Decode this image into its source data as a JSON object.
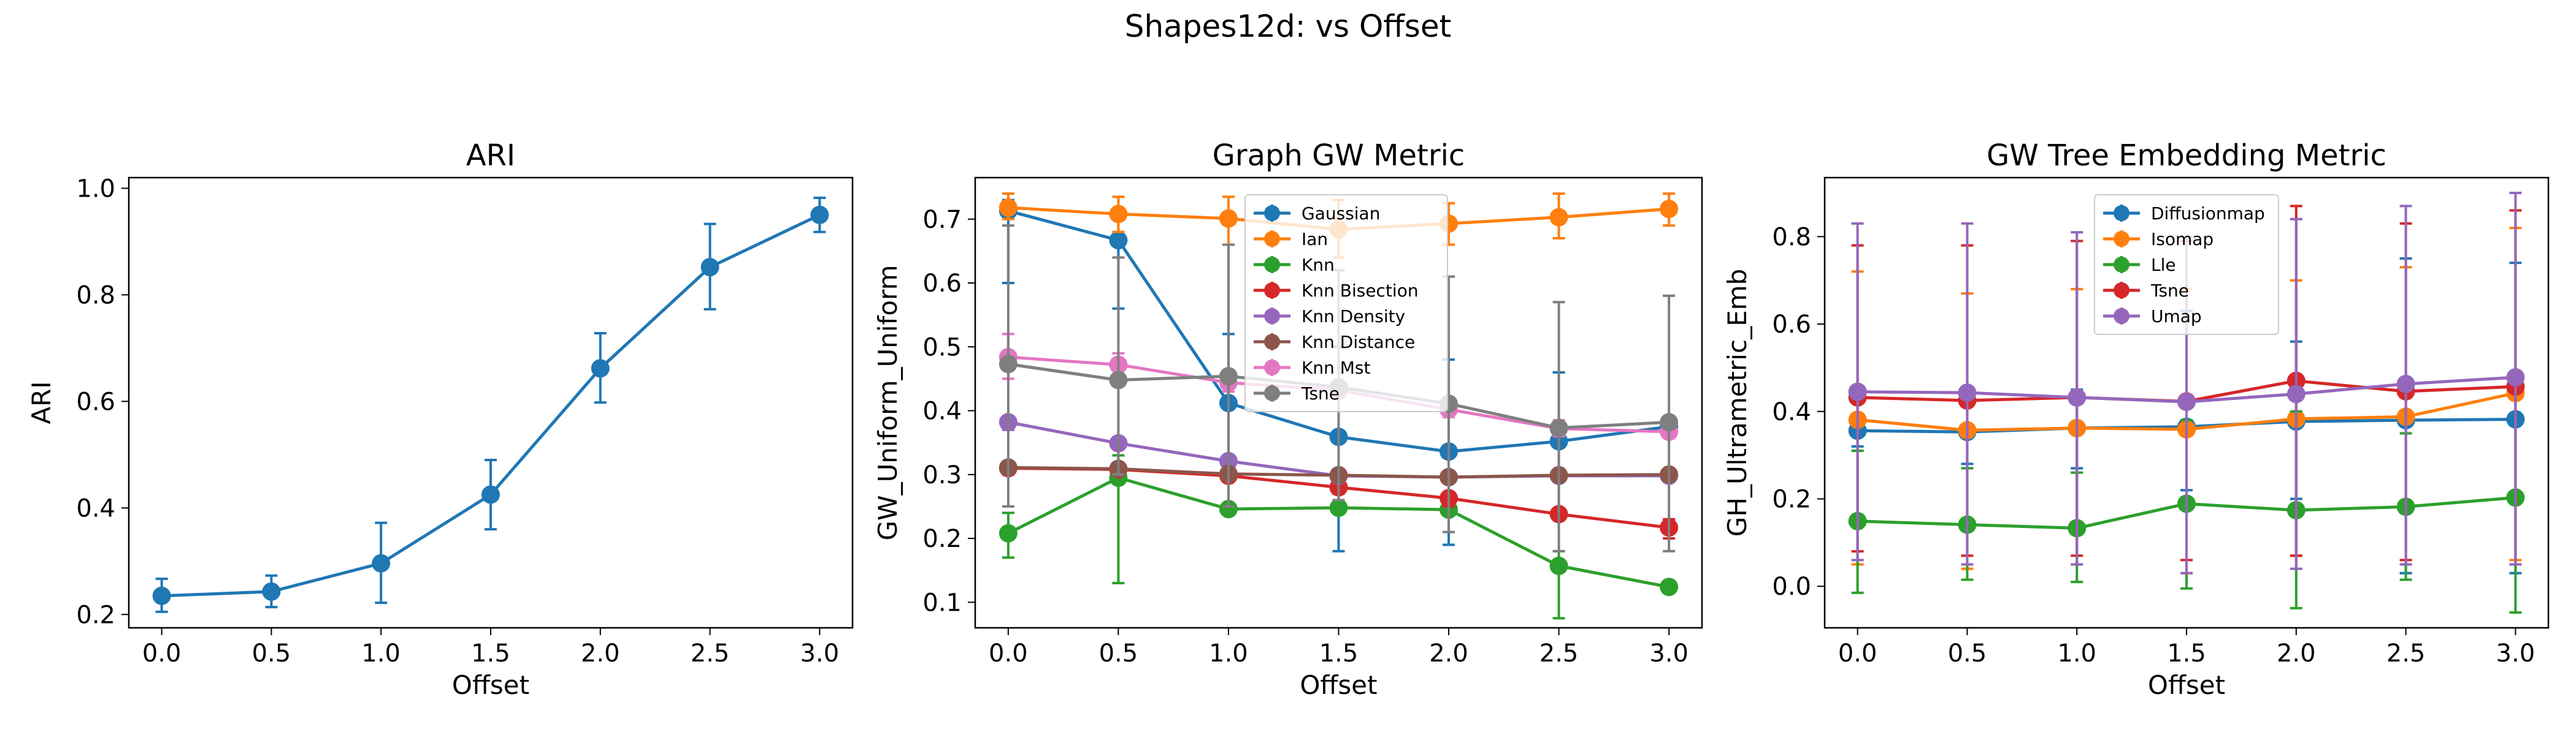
{
  "figure": {
    "title": "Shapes12d: vs Offset"
  },
  "chart_data": [
    {
      "type": "line",
      "title": "ARI",
      "xlabel": "Offset",
      "ylabel": "ARI",
      "xlim": [
        -0.15,
        3.15
      ],
      "ylim": [
        0.175,
        1.02
      ],
      "xticks": [
        0.0,
        0.5,
        1.0,
        1.5,
        2.0,
        2.5,
        3.0
      ],
      "xtick_labels": [
        "0.0",
        "0.5",
        "1.0",
        "1.5",
        "2.0",
        "2.5",
        "3.0"
      ],
      "yticks": [
        0.2,
        0.4,
        0.6,
        0.8,
        1.0
      ],
      "ytick_labels": [
        "0.2",
        "0.4",
        "0.6",
        "0.8",
        "1.0"
      ],
      "x": [
        0.0,
        0.5,
        1.0,
        1.5,
        2.0,
        2.5,
        3.0
      ],
      "legend": null,
      "series": [
        {
          "name": "",
          "color": "#1f77b4",
          "values": [
            0.235,
            0.243,
            0.296,
            0.425,
            0.662,
            0.852,
            0.95
          ],
          "err_low": [
            0.205,
            0.214,
            0.222,
            0.36,
            0.598,
            0.773,
            0.918
          ],
          "err_high": [
            0.267,
            0.273,
            0.372,
            0.49,
            0.728,
            0.933,
            0.982
          ]
        }
      ]
    },
    {
      "type": "line",
      "title": "Graph GW Metric",
      "xlabel": "Offset",
      "ylabel": "GW_Uniform_Uniform",
      "xlim": [
        -0.15,
        3.15
      ],
      "ylim": [
        0.06,
        0.765
      ],
      "xticks": [
        0.0,
        0.5,
        1.0,
        1.5,
        2.0,
        2.5,
        3.0
      ],
      "xtick_labels": [
        "0.0",
        "0.5",
        "1.0",
        "1.5",
        "2.0",
        "2.5",
        "3.0"
      ],
      "yticks": [
        0.1,
        0.2,
        0.3,
        0.4,
        0.5,
        0.6,
        0.7
      ],
      "ytick_labels": [
        "0.1",
        "0.2",
        "0.3",
        "0.4",
        "0.5",
        "0.6",
        "0.7"
      ],
      "x": [
        0.0,
        0.5,
        1.0,
        1.5,
        2.0,
        2.5,
        3.0
      ],
      "legend": "top-center",
      "series": [
        {
          "name": "Gaussian",
          "color": "#1f77b4",
          "values": [
            0.713,
            0.667,
            0.412,
            0.359,
            0.336,
            0.352,
            0.375
          ],
          "err_low": [
            0.6,
            0.56,
            0.3,
            0.18,
            0.19,
            0.24,
            0.36
          ],
          "err_high": [
            0.73,
            0.7,
            0.52,
            0.5,
            0.48,
            0.46,
            0.39
          ]
        },
        {
          "name": "Ian",
          "color": "#ff7f0e",
          "values": [
            0.718,
            0.708,
            0.701,
            0.684,
            0.693,
            0.703,
            0.716
          ],
          "err_low": [
            0.7,
            0.68,
            0.66,
            0.64,
            0.66,
            0.67,
            0.69
          ],
          "err_high": [
            0.74,
            0.735,
            0.735,
            0.73,
            0.725,
            0.74,
            0.74
          ]
        },
        {
          "name": "Knn",
          "color": "#2ca02c",
          "values": [
            0.208,
            0.295,
            0.246,
            0.248,
            0.245,
            0.157,
            0.124
          ],
          "err_low": [
            0.17,
            0.13,
            0.24,
            0.24,
            0.24,
            0.075,
            0.12
          ],
          "err_high": [
            0.24,
            0.33,
            0.25,
            0.26,
            0.25,
            0.18,
            0.13
          ]
        },
        {
          "name": "Knn Bisection",
          "color": "#d62728",
          "values": [
            0.31,
            0.308,
            0.298,
            0.28,
            0.263,
            0.238,
            0.217
          ],
          "err_low": [
            0.3,
            0.3,
            0.29,
            0.27,
            0.25,
            0.23,
            0.2
          ],
          "err_high": [
            0.32,
            0.315,
            0.305,
            0.29,
            0.27,
            0.245,
            0.23
          ]
        },
        {
          "name": "Knn Density",
          "color": "#9467bd",
          "values": [
            0.382,
            0.349,
            0.321,
            0.298,
            0.296,
            0.298,
            0.298
          ],
          "err_low": [
            0.37,
            0.34,
            0.31,
            0.29,
            0.29,
            0.29,
            0.29
          ],
          "err_high": [
            0.39,
            0.355,
            0.33,
            0.305,
            0.3,
            0.305,
            0.305
          ]
        },
        {
          "name": "Knn Distance",
          "color": "#8c564b",
          "values": [
            0.311,
            0.309,
            0.301,
            0.299,
            0.296,
            0.299,
            0.3
          ],
          "err_low": [
            0.305,
            0.3,
            0.295,
            0.293,
            0.29,
            0.293,
            0.295
          ],
          "err_high": [
            0.317,
            0.315,
            0.307,
            0.305,
            0.302,
            0.305,
            0.305
          ]
        },
        {
          "name": "Knn Mst",
          "color": "#e377c2",
          "values": [
            0.484,
            0.472,
            0.444,
            0.432,
            0.402,
            0.372,
            0.367
          ],
          "err_low": [
            0.45,
            0.45,
            0.43,
            0.42,
            0.39,
            0.36,
            0.36
          ],
          "err_high": [
            0.52,
            0.49,
            0.46,
            0.445,
            0.415,
            0.385,
            0.375
          ]
        },
        {
          "name": "Tsne",
          "color": "#7f7f7f",
          "values": [
            0.473,
            0.448,
            0.454,
            0.437,
            0.411,
            0.373,
            0.382
          ],
          "err_low": [
            0.25,
            0.3,
            0.25,
            0.26,
            0.21,
            0.18,
            0.18
          ],
          "err_high": [
            0.69,
            0.64,
            0.66,
            0.62,
            0.61,
            0.57,
            0.58
          ]
        }
      ]
    },
    {
      "type": "line",
      "title": "GW Tree Embedding Metric",
      "xlabel": "Offset",
      "ylabel": "GH_Ultrametric_Emb",
      "xlim": [
        -0.15,
        3.15
      ],
      "ylim": [
        -0.095,
        0.935
      ],
      "xticks": [
        0.0,
        0.5,
        1.0,
        1.5,
        2.0,
        2.5,
        3.0
      ],
      "xtick_labels": [
        "0.0",
        "0.5",
        "1.0",
        "1.5",
        "2.0",
        "2.5",
        "3.0"
      ],
      "yticks": [
        0.0,
        0.2,
        0.4,
        0.6,
        0.8
      ],
      "ytick_labels": [
        "0.0",
        "0.2",
        "0.4",
        "0.6",
        "0.8"
      ],
      "x": [
        0.0,
        0.5,
        1.0,
        1.5,
        2.0,
        2.5,
        3.0
      ],
      "legend": "top-center",
      "series": [
        {
          "name": "Diffusionmap",
          "color": "#1f77b4",
          "values": [
            0.356,
            0.353,
            0.362,
            0.365,
            0.377,
            0.38,
            0.382
          ],
          "err_low": [
            0.32,
            0.28,
            0.27,
            0.22,
            0.2,
            0.03,
            0.03
          ],
          "err_high": [
            0.39,
            0.44,
            0.45,
            0.63,
            0.56,
            0.75,
            0.74
          ]
        },
        {
          "name": "Isomap",
          "color": "#ff7f0e",
          "values": [
            0.381,
            0.357,
            0.362,
            0.359,
            0.383,
            0.388,
            0.442
          ],
          "err_low": [
            0.05,
            0.04,
            0.05,
            0.03,
            0.07,
            0.05,
            0.06
          ],
          "err_high": [
            0.72,
            0.67,
            0.68,
            0.68,
            0.7,
            0.73,
            0.82
          ]
        },
        {
          "name": "Lle",
          "color": "#2ca02c",
          "values": [
            0.149,
            0.141,
            0.133,
            0.189,
            0.174,
            0.182,
            0.203
          ],
          "err_low": [
            -0.015,
            0.015,
            0.01,
            -0.005,
            -0.05,
            0.015,
            -0.06
          ],
          "err_high": [
            0.31,
            0.27,
            0.26,
            0.38,
            0.4,
            0.35,
            0.47
          ]
        },
        {
          "name": "Tsne",
          "color": "#d62728",
          "values": [
            0.432,
            0.425,
            0.432,
            0.423,
            0.47,
            0.446,
            0.457
          ],
          "err_low": [
            0.08,
            0.07,
            0.07,
            0.06,
            0.07,
            0.06,
            0.05
          ],
          "err_high": [
            0.78,
            0.78,
            0.79,
            0.79,
            0.87,
            0.83,
            0.86
          ]
        },
        {
          "name": "Umap",
          "color": "#9467bd",
          "values": [
            0.445,
            0.443,
            0.432,
            0.422,
            0.44,
            0.463,
            0.478
          ],
          "err_low": [
            0.06,
            0.05,
            0.05,
            0.03,
            0.04,
            0.05,
            0.05
          ],
          "err_high": [
            0.83,
            0.83,
            0.81,
            0.8,
            0.84,
            0.87,
            0.9
          ]
        }
      ]
    }
  ]
}
